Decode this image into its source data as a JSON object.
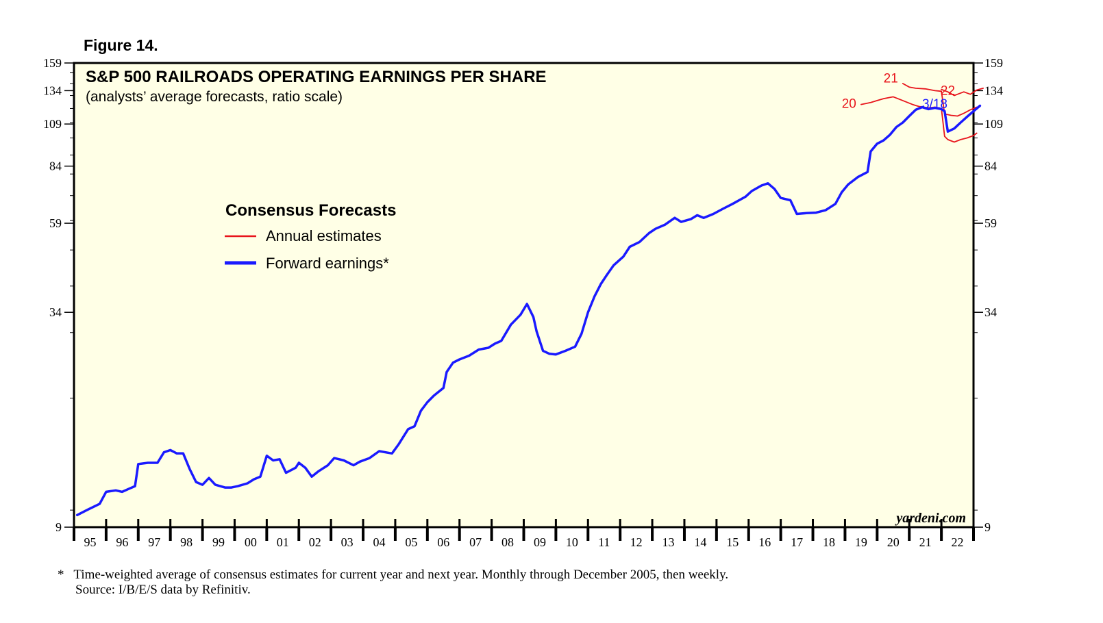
{
  "figure_label": "Figure 14.",
  "chart_data": {
    "type": "line",
    "title": "S&P 500 RAILROADS OPERATING EARNINGS PER SHARE",
    "subtitle": "(analysts’ average forecasts, ratio scale)",
    "y_scale": "log",
    "ylim": [
      9,
      159
    ],
    "y_ticks": [
      9,
      34,
      59,
      84,
      109,
      134,
      159
    ],
    "xlim": [
      1995,
      2023
    ],
    "x_tick_labels": [
      "95",
      "96",
      "97",
      "98",
      "99",
      "00",
      "01",
      "02",
      "03",
      "04",
      "05",
      "06",
      "07",
      "08",
      "09",
      "10",
      "11",
      "12",
      "13",
      "14",
      "15",
      "16",
      "17",
      "18",
      "19",
      "20",
      "21",
      "22"
    ],
    "grid": false,
    "legend": {
      "title": "Consensus Forecasts",
      "placement": "center-left",
      "items": [
        {
          "label": "Annual estimates",
          "color": "#e8141b"
        },
        {
          "label": "Forward earnings*",
          "color": "#1a1aff"
        }
      ]
    },
    "annotations": {
      "latest_date": "3/18",
      "source_brand": "yardeni.com"
    },
    "series": [
      {
        "name": "Forward earnings*",
        "color": "#1a1aff",
        "points": [
          [
            1995.1,
            9.7
          ],
          [
            1995.4,
            10.0
          ],
          [
            1995.8,
            10.4
          ],
          [
            1996.0,
            11.2
          ],
          [
            1996.3,
            11.3
          ],
          [
            1996.5,
            11.2
          ],
          [
            1996.7,
            11.4
          ],
          [
            1996.9,
            11.6
          ],
          [
            1997.0,
            13.3
          ],
          [
            1997.3,
            13.4
          ],
          [
            1997.6,
            13.4
          ],
          [
            1997.8,
            14.3
          ],
          [
            1998.0,
            14.5
          ],
          [
            1998.2,
            14.2
          ],
          [
            1998.4,
            14.2
          ],
          [
            1998.6,
            12.9
          ],
          [
            1998.8,
            11.9
          ],
          [
            1999.0,
            11.7
          ],
          [
            1999.2,
            12.2
          ],
          [
            1999.4,
            11.7
          ],
          [
            1999.7,
            11.5
          ],
          [
            1999.9,
            11.5
          ],
          [
            2000.1,
            11.6
          ],
          [
            2000.4,
            11.8
          ],
          [
            2000.6,
            12.1
          ],
          [
            2000.8,
            12.3
          ],
          [
            2001.0,
            14.0
          ],
          [
            2001.2,
            13.6
          ],
          [
            2001.4,
            13.7
          ],
          [
            2001.6,
            12.6
          ],
          [
            2001.9,
            13.0
          ],
          [
            2002.0,
            13.4
          ],
          [
            2002.2,
            13.0
          ],
          [
            2002.4,
            12.3
          ],
          [
            2002.6,
            12.7
          ],
          [
            2002.9,
            13.2
          ],
          [
            2003.1,
            13.8
          ],
          [
            2003.4,
            13.6
          ],
          [
            2003.7,
            13.2
          ],
          [
            2003.9,
            13.5
          ],
          [
            2004.2,
            13.8
          ],
          [
            2004.5,
            14.4
          ],
          [
            2004.7,
            14.3
          ],
          [
            2004.9,
            14.2
          ],
          [
            2005.1,
            15.0
          ],
          [
            2005.4,
            16.5
          ],
          [
            2005.6,
            16.8
          ],
          [
            2005.8,
            18.5
          ],
          [
            2006.0,
            19.5
          ],
          [
            2006.2,
            20.3
          ],
          [
            2006.5,
            21.3
          ],
          [
            2006.6,
            23.5
          ],
          [
            2006.8,
            24.9
          ],
          [
            2007.0,
            25.4
          ],
          [
            2007.3,
            26.0
          ],
          [
            2007.6,
            27.0
          ],
          [
            2007.9,
            27.3
          ],
          [
            2008.1,
            28.0
          ],
          [
            2008.3,
            28.5
          ],
          [
            2008.6,
            31.5
          ],
          [
            2008.9,
            33.5
          ],
          [
            2009.1,
            35.8
          ],
          [
            2009.3,
            33.0
          ],
          [
            2009.4,
            30.2
          ],
          [
            2009.6,
            26.8
          ],
          [
            2009.8,
            26.3
          ],
          [
            2010.0,
            26.2
          ],
          [
            2010.3,
            26.8
          ],
          [
            2010.6,
            27.5
          ],
          [
            2010.8,
            29.8
          ],
          [
            2011.0,
            34.0
          ],
          [
            2011.2,
            37.5
          ],
          [
            2011.4,
            40.5
          ],
          [
            2011.6,
            43.0
          ],
          [
            2011.8,
            45.5
          ],
          [
            2012.1,
            48.0
          ],
          [
            2012.3,
            51.0
          ],
          [
            2012.6,
            52.5
          ],
          [
            2012.9,
            55.5
          ],
          [
            2013.1,
            57.0
          ],
          [
            2013.4,
            58.5
          ],
          [
            2013.7,
            61.0
          ],
          [
            2013.9,
            59.5
          ],
          [
            2014.2,
            60.5
          ],
          [
            2014.4,
            62.0
          ],
          [
            2014.6,
            61.0
          ],
          [
            2014.9,
            62.5
          ],
          [
            2015.2,
            64.5
          ],
          [
            2015.5,
            66.5
          ],
          [
            2015.9,
            69.5
          ],
          [
            2016.1,
            72.0
          ],
          [
            2016.4,
            74.5
          ],
          [
            2016.6,
            75.5
          ],
          [
            2016.8,
            73.0
          ],
          [
            2017.0,
            69.0
          ],
          [
            2017.3,
            68.0
          ],
          [
            2017.5,
            62.5
          ],
          [
            2017.8,
            62.8
          ],
          [
            2018.1,
            63.0
          ],
          [
            2018.4,
            64.0
          ],
          [
            2018.7,
            66.5
          ],
          [
            2018.9,
            71.5
          ],
          [
            2019.1,
            75.0
          ],
          [
            2019.4,
            78.5
          ],
          [
            2019.7,
            81.0
          ],
          [
            2019.8,
            92.0
          ],
          [
            2020.0,
            96.5
          ],
          [
            2020.2,
            98.5
          ],
          [
            2020.4,
            102.0
          ],
          [
            2020.6,
            107.0
          ],
          [
            2020.8,
            110.0
          ],
          [
            2021.0,
            114.5
          ],
          [
            2021.2,
            119.0
          ],
          [
            2021.4,
            121.0
          ],
          [
            2021.6,
            119.5
          ],
          [
            2021.8,
            120.5
          ],
          [
            2022.0,
            119.5
          ],
          [
            2022.1,
            118.0
          ],
          [
            2022.2,
            104.0
          ],
          [
            2022.4,
            106.0
          ],
          [
            2022.6,
            110.0
          ],
          [
            2022.8,
            114.0
          ],
          [
            2023.0,
            118.0
          ],
          [
            2023.2,
            122.0
          ]
        ]
      },
      {
        "name": "20",
        "color": "#e8141b",
        "points": [
          [
            2019.5,
            123.0
          ],
          [
            2019.8,
            124.5
          ],
          [
            2020.0,
            126.0
          ],
          [
            2020.2,
            127.5
          ],
          [
            2020.5,
            129.0
          ],
          [
            2020.7,
            127.0
          ],
          [
            2020.9,
            125.0
          ],
          [
            2021.1,
            123.0
          ],
          [
            2021.3,
            121.5
          ],
          [
            2021.6,
            120.5
          ],
          [
            2021.8,
            121.0
          ],
          [
            2022.0,
            120.0
          ],
          [
            2022.1,
            101.0
          ],
          [
            2022.2,
            99.0
          ],
          [
            2022.4,
            97.5
          ],
          [
            2022.6,
            99.0
          ],
          [
            2022.8,
            100.0
          ],
          [
            2023.0,
            101.5
          ],
          [
            2023.1,
            103.0
          ]
        ]
      },
      {
        "name": "21",
        "color": "#e8141b",
        "points": [
          [
            2020.8,
            140.0
          ],
          [
            2021.0,
            137.0
          ],
          [
            2021.2,
            136.0
          ],
          [
            2021.5,
            135.5
          ],
          [
            2021.8,
            134.0
          ],
          [
            2022.0,
            133.5
          ],
          [
            2022.1,
            116.0
          ],
          [
            2022.3,
            115.0
          ],
          [
            2022.5,
            114.5
          ],
          [
            2022.7,
            116.5
          ],
          [
            2022.9,
            119.0
          ],
          [
            2023.1,
            121.0
          ]
        ]
      },
      {
        "name": "22",
        "color": "#e8141b",
        "points": [
          [
            2022.0,
            135.0
          ],
          [
            2022.2,
            133.0
          ],
          [
            2022.4,
            130.0
          ],
          [
            2022.7,
            133.0
          ],
          [
            2022.9,
            131.0
          ],
          [
            2023.1,
            134.5
          ],
          [
            2023.3,
            136.0
          ]
        ]
      }
    ],
    "series_labels": [
      {
        "text": "20",
        "color": "#e8141b",
        "x": 2019.35,
        "y": 120.5,
        "anchor": "end"
      },
      {
        "text": "21",
        "color": "#e8141b",
        "x": 2020.65,
        "y": 141.0,
        "anchor": "end"
      },
      {
        "text": "22",
        "color": "#e8141b",
        "x": 2022.2,
        "y": 130.5,
        "anchor": "middle"
      }
    ]
  },
  "footnote": "*   Time-weighted average of consensus estimates for current year and next year. Monthly through December 2005, then weekly.",
  "source": "Source: I/B/E/S data by Refinitiv."
}
